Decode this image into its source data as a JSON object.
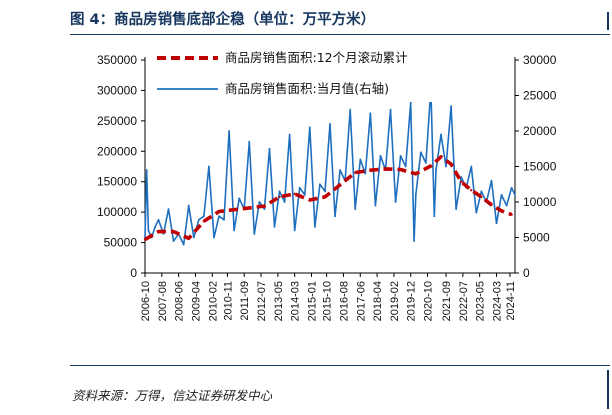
{
  "figure": {
    "title": "图 4：商品房销售底部企稳（单位：万平方米）",
    "source": "资料来源：万得，信达证券研发中心"
  },
  "chart_data": {
    "type": "line",
    "x_ticks": [
      "2006-10",
      "2007-08",
      "2008-06",
      "2009-04",
      "2010-02",
      "2010-11",
      "2011-09",
      "2012-07",
      "2013-05",
      "2014-03",
      "2015-01",
      "2015-10",
      "2016-08",
      "2017-06",
      "2018-04",
      "2019-02",
      "2019-12",
      "2020-10",
      "2021-09",
      "2022-07",
      "2023-05",
      "2024-03",
      "2024-11"
    ],
    "y_left": {
      "ticks": [
        0,
        50000,
        100000,
        150000,
        200000,
        250000,
        300000,
        350000
      ],
      "range": [
        0,
        350000
      ]
    },
    "y_right": {
      "ticks": [
        0,
        5000,
        10000,
        15000,
        20000,
        25000,
        30000
      ],
      "range": [
        0,
        30000
      ]
    },
    "series": [
      {
        "name": "商品房销售面积:12个月滚动累计",
        "axis": "left",
        "style": "dashed",
        "color": "#c00000",
        "x": [
          "2006-10",
          "2007-06",
          "2008-03",
          "2008-12",
          "2009-09",
          "2010-06",
          "2011-03",
          "2011-12",
          "2012-09",
          "2013-06",
          "2014-03",
          "2014-12",
          "2015-09",
          "2016-06",
          "2017-03",
          "2017-12",
          "2018-09",
          "2019-06",
          "2020-03",
          "2020-12",
          "2021-06",
          "2021-12",
          "2022-06",
          "2022-12",
          "2023-06",
          "2023-12",
          "2024-06",
          "2024-12"
        ],
        "values": [
          55000,
          68000,
          68000,
          57000,
          85000,
          101000,
          104000,
          107000,
          110000,
          125000,
          130000,
          120000,
          125000,
          145000,
          165000,
          169000,
          171000,
          170000,
          163000,
          176000,
          191000,
          179000,
          150000,
          136000,
          125000,
          112000,
          102000,
          96000
        ]
      },
      {
        "name": "商品房销售面积:当月值(右轴)",
        "axis": "right",
        "style": "solid",
        "color": "#1f6fbf",
        "x": [
          "2006-10",
          "2006-11",
          "2006-12",
          "2007-02",
          "2007-04",
          "2007-06",
          "2007-09",
          "2007-12",
          "2008-03",
          "2008-06",
          "2008-09",
          "2008-12",
          "2009-03",
          "2009-06",
          "2009-09",
          "2009-12",
          "2010-03",
          "2010-06",
          "2010-09",
          "2010-12",
          "2011-03",
          "2011-06",
          "2011-09",
          "2011-12",
          "2012-03",
          "2012-06",
          "2012-09",
          "2012-12",
          "2013-03",
          "2013-06",
          "2013-09",
          "2013-12",
          "2014-03",
          "2014-06",
          "2014-09",
          "2014-12",
          "2015-03",
          "2015-06",
          "2015-09",
          "2015-12",
          "2016-03",
          "2016-06",
          "2016-09",
          "2016-12",
          "2017-03",
          "2017-06",
          "2017-09",
          "2017-12",
          "2018-03",
          "2018-06",
          "2018-09",
          "2018-12",
          "2019-03",
          "2019-06",
          "2019-09",
          "2019-12",
          "2020-02",
          "2020-03",
          "2020-06",
          "2020-09",
          "2020-12",
          "2021-02",
          "2021-03",
          "2021-06",
          "2021-09",
          "2021-12",
          "2022-03",
          "2022-06",
          "2022-09",
          "2022-12",
          "2023-03",
          "2023-06",
          "2023-09",
          "2023-12",
          "2024-03",
          "2024-06",
          "2024-09",
          "2024-12",
          "2025-02"
        ],
        "values": [
          5000,
          14500,
          6000,
          5000,
          6500,
          7500,
          5500,
          9000,
          4500,
          5500,
          4000,
          9500,
          5000,
          7500,
          8000,
          15000,
          5000,
          8000,
          7500,
          20000,
          6000,
          10500,
          9000,
          18500,
          5500,
          10000,
          9000,
          17500,
          6500,
          11500,
          10000,
          19500,
          6000,
          12000,
          11000,
          20500,
          6500,
          12500,
          11500,
          21000,
          8000,
          14500,
          13000,
          23000,
          9000,
          16000,
          14000,
          22500,
          9500,
          16500,
          14500,
          23000,
          10000,
          16500,
          15000,
          24000,
          4500,
          11000,
          17000,
          15500,
          26000,
          8000,
          14500,
          19500,
          15000,
          23500,
          9000,
          13500,
          12000,
          15000,
          8500,
          11500,
          10000,
          13000,
          7000,
          11000,
          9500,
          12000,
          11000
        ]
      }
    ]
  }
}
